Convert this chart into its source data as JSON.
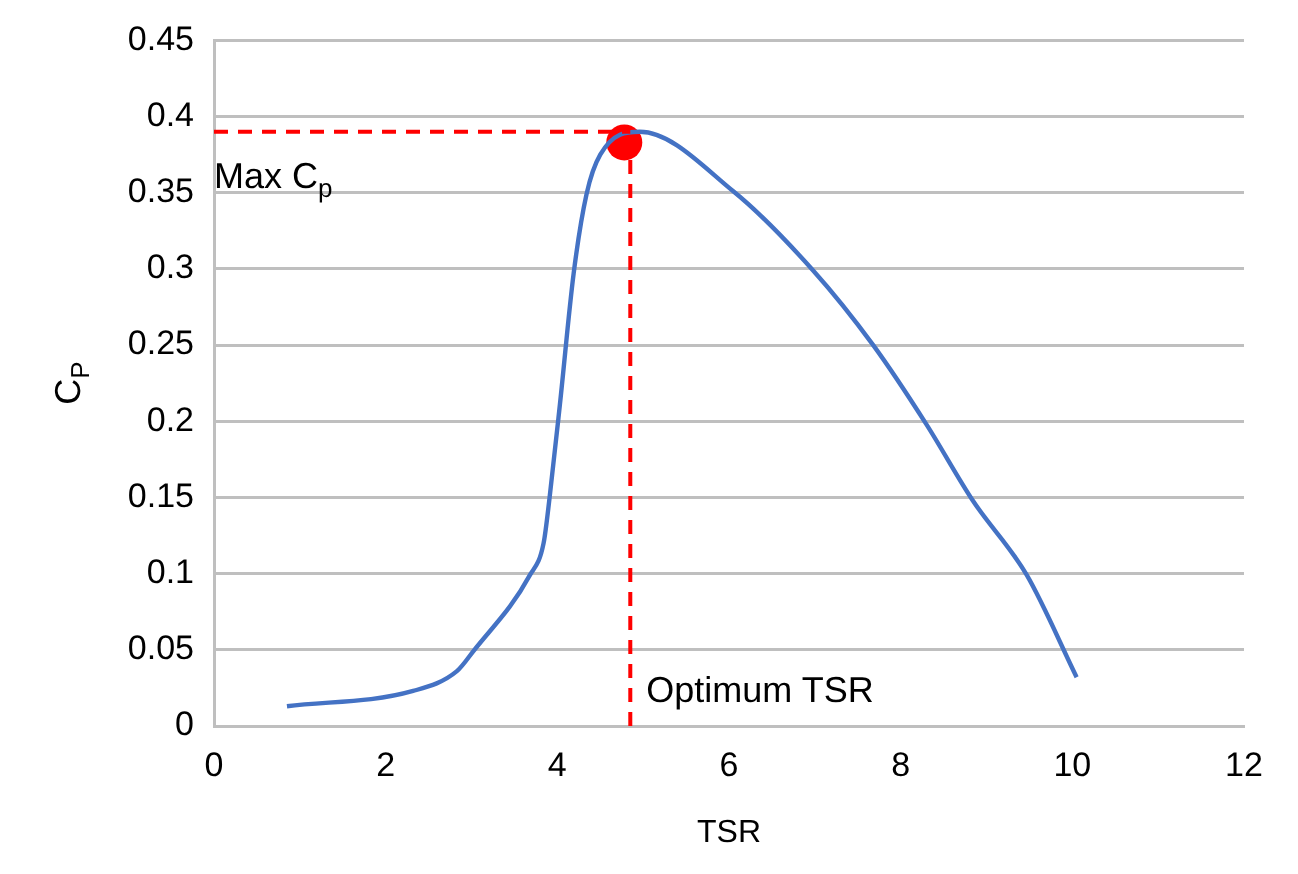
{
  "chart_data": {
    "type": "line",
    "xlabel": "TSR",
    "ylabel": "C$_{P}$",
    "xlim": [
      0,
      12
    ],
    "xticks": [
      0,
      2,
      4,
      6,
      8,
      10,
      12
    ],
    "ylim": [
      0,
      0.45
    ],
    "yticks": [
      0,
      0.05,
      0.1,
      0.15,
      0.2,
      0.25,
      0.3,
      0.35,
      0.4,
      0.45
    ],
    "grid": "y",
    "legend": false,
    "series": [
      {
        "color": "#4472c4",
        "marker": "none",
        "line_style": "solid",
        "x": [
          0.85,
          2.32,
          2.83,
          3.02,
          3.68,
          3.84,
          3.91,
          4.03,
          4.19,
          4.34,
          4.5,
          4.96,
          6.05,
          6.98,
          7.68,
          8.3,
          8.84,
          9.47,
          10.05
        ],
        "values": [
          0.013,
          0.023,
          0.036,
          0.049,
          0.099,
          0.12,
          0.15,
          0.211,
          0.297,
          0.349,
          0.375,
          0.39,
          0.351,
          0.299,
          0.25,
          0.198,
          0.148,
          0.099,
          0.032
        ]
      },
      {
        "type": "scatter",
        "color": "#ff0000",
        "marker": "circle",
        "x": [
          4.78
        ],
        "values": [
          0.383
        ]
      }
    ],
    "ref_lines": [
      {
        "axis": "x",
        "value": 4.85,
        "label": "Optimum TSR",
        "color": "#ff0000",
        "line_style": "dashed"
      },
      {
        "axis": "y",
        "value": 0.39,
        "label": "Max C$_{p}$",
        "color": "#ff0000",
        "line_style": "dashed"
      }
    ]
  }
}
